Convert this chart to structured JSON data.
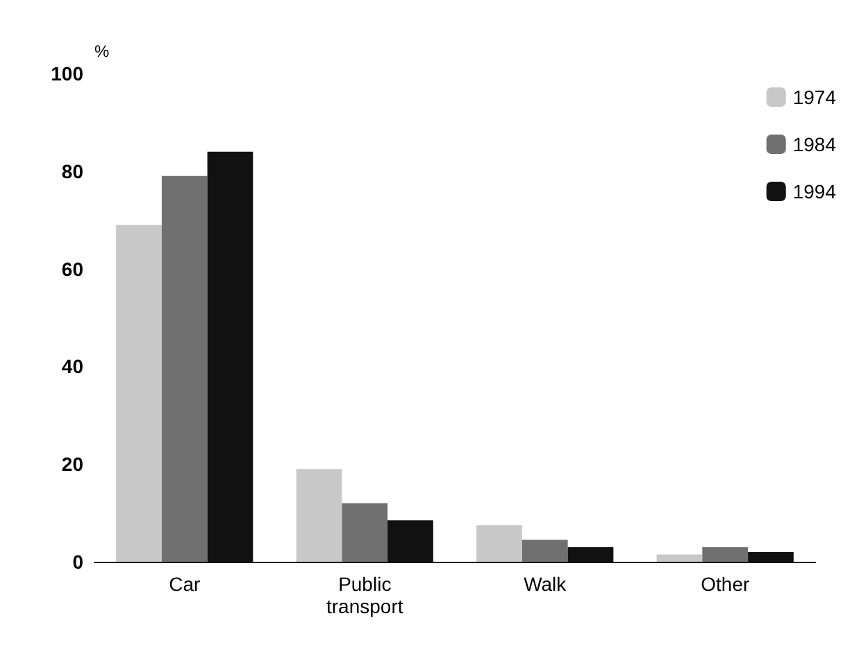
{
  "chart_data": {
    "type": "bar",
    "ylabel": "%",
    "categories": [
      "Car",
      "Public\ntransport",
      "Walk",
      "Other"
    ],
    "series": [
      {
        "name": "1974",
        "color": "#c8c8c8",
        "values": [
          69,
          19,
          7.5,
          1.5
        ]
      },
      {
        "name": "1984",
        "color": "#707070",
        "values": [
          79,
          12,
          4.5,
          3
        ]
      },
      {
        "name": "1994",
        "color": "#111111",
        "values": [
          84,
          8.5,
          3,
          2
        ]
      }
    ],
    "ylim": [
      0,
      100
    ],
    "yticks": [
      0,
      20,
      40,
      60,
      80,
      100
    ],
    "grid": false,
    "legend": "top right"
  }
}
